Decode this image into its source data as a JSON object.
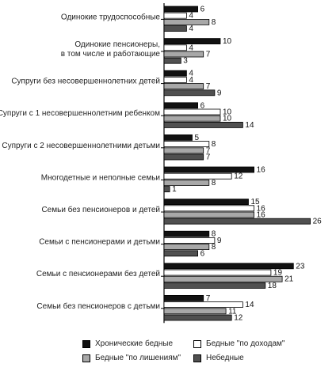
{
  "chart_data": {
    "type": "bar",
    "orientation": "horizontal",
    "categories": [
      "Одинокие трудоспособные",
      "Одинокие пенсионеры,\nв том числе и работающие",
      "Супруги без несовершеннолетних детей",
      "Супруги с 1 несовершеннолетним ребенком",
      "Супруги с 2 несовершеннолетними детьми",
      "Многодетные и неполные семьи",
      "Семьи без пенсионеров и детей",
      "Семьи с пенсионерами и детьми",
      "Семьи с пенсионерами без детей",
      "Семьи без пенсионеров с детьми"
    ],
    "series": [
      {
        "name": "Хронические бедные",
        "color": "#111111",
        "values": [
          6,
          10,
          4,
          6,
          5,
          16,
          15,
          8,
          23,
          7
        ]
      },
      {
        "name": "Бедные \"по доходам\"",
        "color": "#ffffff",
        "values": [
          4,
          4,
          4,
          10,
          8,
          12,
          16,
          9,
          19,
          14
        ]
      },
      {
        "name": "Бедные \"по лишениям\"",
        "color": "#a8a8a8",
        "values": [
          8,
          7,
          7,
          10,
          7,
          8,
          16,
          8,
          21,
          11
        ]
      },
      {
        "name": "Небедные",
        "color": "#505050",
        "values": [
          4,
          3,
          9,
          14,
          7,
          1,
          26,
          6,
          18,
          12
        ]
      }
    ],
    "xlim": [
      0,
      27
    ],
    "grid": false,
    "legend_position": "bottom"
  }
}
